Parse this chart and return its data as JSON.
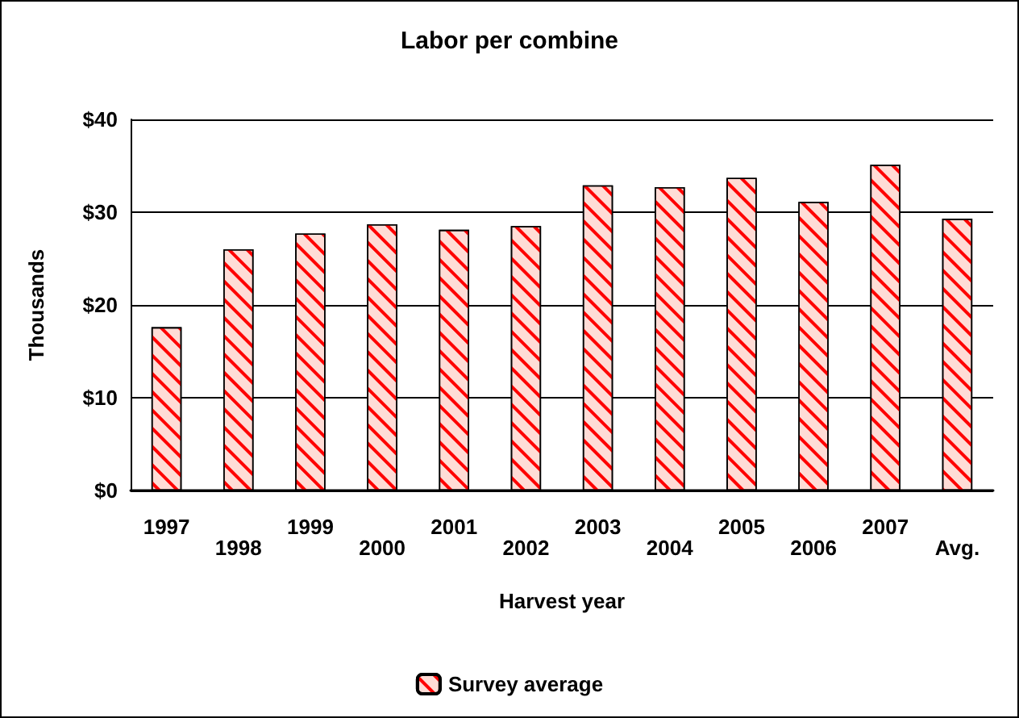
{
  "chart_data": {
    "type": "bar",
    "title": "Labor per combine",
    "xlabel": "Harvest year",
    "ylabel": "Thousands",
    "categories": [
      "1997",
      "1998",
      "1999",
      "2000",
      "2001",
      "2002",
      "2003",
      "2004",
      "2005",
      "2006",
      "2007",
      "Avg."
    ],
    "series": [
      {
        "name": "Survey average",
        "color": "#ffdcd6",
        "values": [
          17.6,
          26.0,
          27.7,
          28.7,
          28.1,
          28.5,
          32.9,
          32.7,
          33.7,
          31.1,
          35.1,
          29.3
        ]
      }
    ],
    "ylim": [
      0,
      40
    ],
    "yticks": [
      {
        "value": 0,
        "label": "$0"
      },
      {
        "value": 10,
        "label": "$10"
      },
      {
        "value": 20,
        "label": "$20"
      },
      {
        "value": 30,
        "label": "$30"
      },
      {
        "value": 40,
        "label": "$40"
      }
    ],
    "grid": "y",
    "legend": "bottom"
  }
}
